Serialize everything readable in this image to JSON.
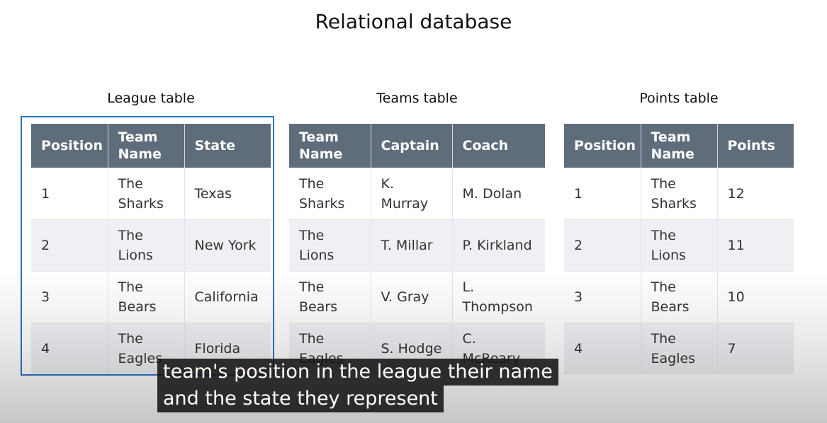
{
  "title": "Relational database",
  "league_table": {
    "caption": "League table",
    "headers": [
      "Position",
      "Team Name",
      "State"
    ],
    "rows": [
      [
        "1",
        "The Sharks",
        "Texas"
      ],
      [
        "2",
        "The Lions",
        "New York"
      ],
      [
        "3",
        "The Bears",
        "California"
      ],
      [
        "4",
        "The Eagles",
        "Florida"
      ]
    ]
  },
  "teams_table": {
    "caption": "Teams table",
    "headers": [
      "Team Name",
      "Captain",
      "Coach"
    ],
    "rows": [
      [
        "The Sharks",
        "K. Murray",
        "M. Dolan"
      ],
      [
        "The Lions",
        "T. Millar",
        "P. Kirkland"
      ],
      [
        "The Bears",
        "V. Gray",
        "L. Thompson"
      ],
      [
        "The Eagles",
        "S. Hodge",
        "C. McReary"
      ]
    ]
  },
  "points_table": {
    "caption": "Points table",
    "headers": [
      "Position",
      "Team Name",
      "Points"
    ],
    "rows": [
      [
        "1",
        "The Sharks",
        "12"
      ],
      [
        "2",
        "The Lions",
        "11"
      ],
      [
        "3",
        "The Bears",
        "10"
      ],
      [
        "4",
        "The Eagles",
        "7"
      ]
    ]
  },
  "subtitles": {
    "line1": "team's position in the league their name",
    "line2": "and the state they represent"
  },
  "colors": {
    "header_bg": "#5f6c7a",
    "highlight": "#2d72c4",
    "row_alt": "#eef0f3"
  }
}
